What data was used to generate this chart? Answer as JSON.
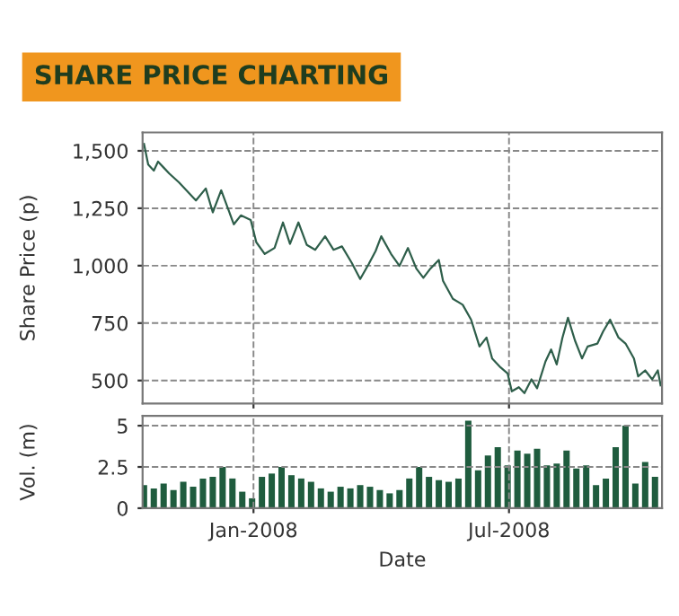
{
  "chart_data": [
    {
      "type": "line",
      "title": "SHARE PRICE CHARTING",
      "ylabel": "Share Price (p)",
      "ylim": [
        400,
        1580
      ],
      "yticks": [
        {
          "value": 500,
          "label": "500"
        },
        {
          "value": 750,
          "label": "750"
        },
        {
          "value": 1000,
          "label": "1,000"
        },
        {
          "value": 1250,
          "label": "1,250"
        },
        {
          "value": 1500,
          "label": "1,500"
        }
      ],
      "xlim": [
        "2007-10-14",
        "2008-10-18"
      ],
      "xticks": [
        {
          "value": "2008-01-01",
          "label": null
        },
        {
          "value": "2008-07-01",
          "label": null
        }
      ],
      "tick_labels": "y",
      "grid": true,
      "legend": false,
      "x": [
        "2007-10-15",
        "2007-10-18",
        "2007-10-22",
        "2007-10-25",
        "2007-10-29",
        "2007-11-02",
        "2007-11-09",
        "2007-11-15",
        "2007-11-21",
        "2007-11-28",
        "2007-12-03",
        "2007-12-09",
        "2007-12-18",
        "2007-12-23",
        "2007-12-30",
        "2008-01-03",
        "2008-01-09",
        "2008-01-16",
        "2008-01-22",
        "2008-01-27",
        "2008-02-02",
        "2008-02-08",
        "2008-02-14",
        "2008-02-21",
        "2008-02-27",
        "2008-03-04",
        "2008-03-11",
        "2008-03-17",
        "2008-03-23",
        "2008-03-28",
        "2008-04-01",
        "2008-04-08",
        "2008-04-14",
        "2008-04-20",
        "2008-04-26",
        "2008-05-01",
        "2008-05-06",
        "2008-05-12",
        "2008-05-15",
        "2008-05-22",
        "2008-05-29",
        "2008-06-04",
        "2008-06-10",
        "2008-06-15",
        "2008-06-19",
        "2008-06-25",
        "2008-06-30",
        "2008-07-03",
        "2008-07-08",
        "2008-07-12",
        "2008-07-17",
        "2008-07-21",
        "2008-07-27",
        "2008-07-31",
        "2008-08-04",
        "2008-08-08",
        "2008-08-12",
        "2008-08-17",
        "2008-08-22",
        "2008-08-26",
        "2008-09-02",
        "2008-09-06",
        "2008-09-11",
        "2008-09-17",
        "2008-09-22",
        "2008-09-28",
        "2008-10-01",
        "2008-10-06",
        "2008-10-11",
        "2008-10-15",
        "2008-10-17"
      ],
      "series": [
        {
          "color": "#2e5e4a",
          "values": [
            1530,
            1440,
            1414,
            1453,
            1427,
            1401,
            1362,
            1323,
            1284,
            1336,
            1232,
            1328,
            1180,
            1219,
            1199,
            1102,
            1051,
            1077,
            1188,
            1095,
            1188,
            1090,
            1069,
            1128,
            1069,
            1084,
            1012,
            942,
            1006,
            1064,
            1128,
            1051,
            999,
            1077,
            987,
            947,
            987,
            1025,
            934,
            856,
            830,
            765,
            648,
            687,
            596,
            557,
            531,
            453,
            471,
            445,
            505,
            466,
            583,
            635,
            570,
            685,
            773,
            674,
            596,
            648,
            661,
            713,
            765,
            687,
            661,
            596,
            518,
            544,
            505,
            544,
            479
          ]
        }
      ]
    },
    {
      "type": "bar",
      "xlabel": "Date",
      "ylabel": "Vol. (m)",
      "ylim": [
        0,
        5.6
      ],
      "yticks": [
        0,
        2.5,
        5
      ],
      "xlim": [
        "2007-10-14",
        "2008-10-18"
      ],
      "xticks": [
        {
          "value": "2008-01-01",
          "label": "Jan-2008"
        },
        {
          "value": "2008-07-01",
          "label": "Jul-2008"
        }
      ],
      "grid": true,
      "legend": false,
      "x": [
        "2007-10-15",
        "2007-10-22",
        "2007-10-29",
        "2007-11-05",
        "2007-11-12",
        "2007-11-19",
        "2007-11-26",
        "2007-12-03",
        "2007-12-10",
        "2007-12-17",
        "2007-12-24",
        "2007-12-31",
        "2008-01-07",
        "2008-01-14",
        "2008-01-21",
        "2008-01-28",
        "2008-02-04",
        "2008-02-11",
        "2008-02-18",
        "2008-02-25",
        "2008-03-03",
        "2008-03-10",
        "2008-03-17",
        "2008-03-24",
        "2008-03-31",
        "2008-04-07",
        "2008-04-14",
        "2008-04-21",
        "2008-04-28",
        "2008-05-05",
        "2008-05-12",
        "2008-05-19",
        "2008-05-26",
        "2008-06-02",
        "2008-06-09",
        "2008-06-16",
        "2008-06-23",
        "2008-06-30",
        "2008-07-07",
        "2008-07-14",
        "2008-07-21",
        "2008-07-28",
        "2008-08-04",
        "2008-08-11",
        "2008-08-18",
        "2008-08-25",
        "2008-09-01",
        "2008-09-08",
        "2008-09-15",
        "2008-09-22",
        "2008-09-29",
        "2008-10-06",
        "2008-10-13"
      ],
      "series": [
        {
          "color": "#1f5c3e",
          "values": [
            1.4,
            1.2,
            1.5,
            1.1,
            1.6,
            1.3,
            1.8,
            1.9,
            2.5,
            1.8,
            1.0,
            0.6,
            1.9,
            2.1,
            2.5,
            2.0,
            1.8,
            1.6,
            1.2,
            1.0,
            1.3,
            1.2,
            1.4,
            1.3,
            1.1,
            0.9,
            1.1,
            1.8,
            2.5,
            1.9,
            1.7,
            1.6,
            1.8,
            5.3,
            2.3,
            3.2,
            3.7,
            2.6,
            3.5,
            3.3,
            3.6,
            2.6,
            2.7,
            3.5,
            2.4,
            2.6,
            1.4,
            1.8,
            3.7,
            5.0,
            1.5,
            2.8,
            1.9
          ]
        }
      ]
    }
  ]
}
